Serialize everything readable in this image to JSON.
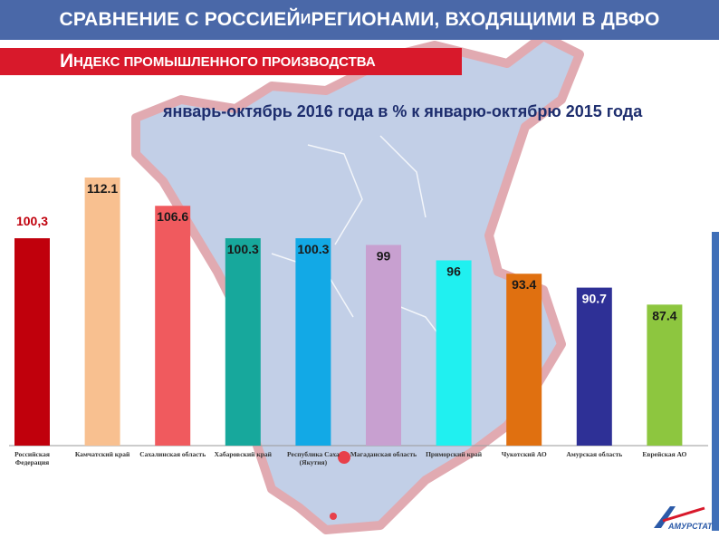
{
  "header": {
    "title_part1": "СРАВНЕНИЕ С РОССИЕЙ ",
    "title_small": "И",
    "title_part2": " РЕГИОНАМИ, ВХОДЯЩИМИ В ДВФО"
  },
  "subheader": {
    "first_letter": "И",
    "rest": "НДЕКС ПРОМЫШЛЕННОГО ПРОИЗВОДСТВА"
  },
  "logo": {
    "text": "АМУРСТАТ"
  },
  "colors": {
    "header_bg": "#4a68a8",
    "subheader_bg": "#d8192b",
    "map_fill": "#bfcde6",
    "map_border": "#e0a6ad"
  },
  "chart_data": {
    "type": "bar",
    "title": "январь-октябрь 2016 года в % к январю-октябрю 2015 года",
    "categories": [
      "Российская Федерация",
      "Камчатский край",
      "Сахалинская область",
      "Хабаровский край",
      "Республика Саха (Якутия)",
      "Магаданская область",
      "Приморский край",
      "Чукотский АО",
      "Амурская область",
      "Еврейская АО"
    ],
    "values": [
      100.3,
      112.1,
      106.6,
      100.3,
      100.3,
      99,
      96,
      93.4,
      90.7,
      87.4
    ],
    "value_labels": [
      "100,3",
      "112.1",
      "106.6",
      "100.3",
      "100.3",
      "99",
      "96",
      "93.4",
      "90.7",
      "87.4"
    ],
    "colors": [
      "#c0000c",
      "#f8c090",
      "#f05a5e",
      "#17a89c",
      "#12a9e6",
      "#c8a0d0",
      "#20f0f0",
      "#e07010",
      "#2e3096",
      "#8dc63f"
    ],
    "label_colors": [
      "#c0000c",
      "#1a1a1a",
      "#1a1a1a",
      "#1a1a1a",
      "#1a1a1a",
      "#1a1a1a",
      "#1a1a1a",
      "#1a1a1a",
      "#ffffff",
      "#1a1a1a"
    ]
  }
}
